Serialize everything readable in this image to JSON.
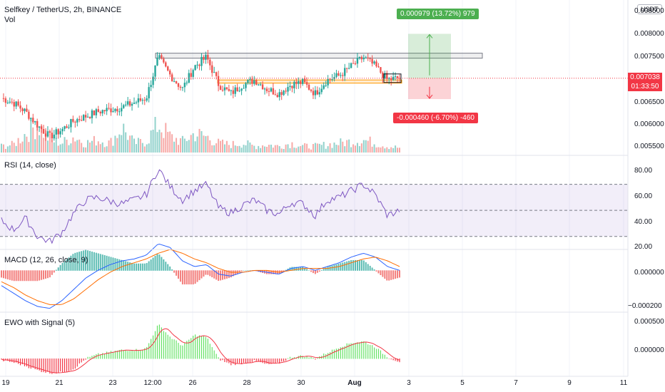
{
  "header": {
    "symbol": "Selfkey / TetherUS, 2h, BINANCE",
    "vol_label": "Vol"
  },
  "currency_button": "USDT",
  "price_axis": [
    "0.008500",
    "0.008000",
    "0.007500",
    "0.006500",
    "0.006000",
    "0.005500"
  ],
  "current_price": {
    "value": "0.007038",
    "countdown": "01:33:50"
  },
  "position": {
    "target_label": "0.000979 (13.72%) 979",
    "stop_label": "-0.000460 (-6.70%) -460"
  },
  "rsi": {
    "label": "RSI (14, close)",
    "axis": [
      "80.00",
      "60.00",
      "40.00",
      "20.00"
    ]
  },
  "macd": {
    "label": "MACD (12, 26, close, 9)",
    "axis": [
      "0.000000",
      "−0.000200"
    ]
  },
  "ewo": {
    "label": "EWO with Signal (5)",
    "axis": [
      "0.000500",
      "0.000000"
    ]
  },
  "time_axis": [
    "19",
    "21",
    "23",
    "12:00",
    "26",
    "28",
    "30",
    "Aug",
    "3",
    "5",
    "7",
    "9",
    "11"
  ],
  "colors": {
    "up": "#26a69a",
    "down": "#ef5350",
    "rsi_line": "#7e57c2",
    "macd_line": "#2962ff",
    "signal_line": "#ff6d00",
    "ewo_up": "#66e266",
    "ewo_down": "#f23645",
    "ewo_signal": "#f23645",
    "target_fill": "#4caf50",
    "stop_fill": "#f23645"
  },
  "chart_data": [
    {
      "type": "candlestick",
      "title": "Selfkey / TetherUS, 2h, BINANCE",
      "ylim": [
        0.0054,
        0.0087
      ],
      "x": [
        "19",
        "21",
        "23",
        "12:00",
        "26",
        "28",
        "30",
        "Aug"
      ],
      "close_path": [
        0.0066,
        0.0065,
        0.0063,
        0.006,
        0.00575,
        0.0059,
        0.0061,
        0.0062,
        0.0063,
        0.00635,
        0.0064,
        0.0065,
        0.0066,
        0.0075,
        0.0071,
        0.0068,
        0.0073,
        0.0075,
        0.0069,
        0.0067,
        0.0069,
        0.007,
        0.0068,
        0.0067,
        0.0069,
        0.00695,
        0.0067,
        0.007,
        0.0071,
        0.0073,
        0.0075,
        0.0073,
        0.007,
        0.00705
      ],
      "volume_path": [
        0.2,
        0.25,
        0.6,
        0.9,
        0.4,
        0.3,
        0.5,
        0.3,
        0.4,
        0.3,
        0.8,
        0.3,
        0.35,
        0.9,
        0.5,
        0.35,
        0.6,
        0.5,
        0.3,
        0.25,
        0.3,
        0.2,
        0.25,
        0.2,
        0.3,
        0.2,
        0.2,
        0.25,
        0.3,
        0.35,
        0.4,
        0.3,
        0.2,
        0.15
      ],
      "resistance_zone": [
        0.00748,
        0.00759
      ],
      "support_zone": [
        0.00693,
        0.007
      ],
      "current_price": 0.007038,
      "target_price": 0.008017,
      "stop_price": 0.006578
    },
    {
      "type": "line",
      "title": "RSI (14, close)",
      "ylim": [
        20,
        90
      ],
      "bands": [
        30,
        50,
        70
      ],
      "values": [
        42,
        35,
        44,
        30,
        26,
        33,
        48,
        58,
        60,
        57,
        55,
        58,
        62,
        82,
        68,
        58,
        65,
        70,
        52,
        48,
        54,
        58,
        50,
        47,
        56,
        55,
        46,
        58,
        60,
        65,
        70,
        62,
        46,
        50
      ]
    },
    {
      "type": "line",
      "title": "MACD (12, 26, close, 9)",
      "ylim": [
        -0.00022,
        0.00011
      ],
      "macd": [
        -8e-05,
        -0.00012,
        -0.00016,
        -0.00019,
        -0.0002,
        -0.00016,
        -0.0001,
        -4e-05,
        0.0,
        3e-05,
        5e-05,
        6e-05,
        8e-05,
        0.00014,
        0.00012,
        5e-05,
        2e-05,
        3e-05,
        -2e-05,
        -3e-05,
        -1e-05,
        0.0,
        -1e-05,
        -2e-05,
        1e-05,
        2e-05,
        0.0,
        2e-05,
        4e-05,
        7e-05,
        9e-05,
        7e-05,
        2e-05,
        0.0
      ],
      "signal": [
        -6e-05,
        -9e-05,
        -0.00013,
        -0.00016,
        -0.00018,
        -0.00018,
        -0.00015,
        -0.0001,
        -5e-05,
        -1e-05,
        2e-05,
        4e-05,
        6e-05,
        9e-05,
        0.00011,
        9e-05,
        6e-05,
        4e-05,
        1e-05,
        -1e-05,
        -1e-05,
        0.0,
        0.0,
        -1e-05,
        0.0,
        1e-05,
        1e-05,
        1e-05,
        2e-05,
        4e-05,
        6e-05,
        7e-05,
        5e-05,
        2e-05
      ]
    },
    {
      "type": "bar",
      "title": "EWO with Signal (5)",
      "ylim": [
        -0.00025,
        0.00065
      ],
      "values": [
        -2e-05,
        -5e-05,
        -0.0001,
        -0.00016,
        -0.0002,
        -0.00019,
        -0.00014,
        0.0,
        6e-05,
        9e-05,
        0.00012,
        0.00012,
        0.00014,
        0.00048,
        0.0003,
        0.00018,
        0.00033,
        0.0003,
        0.0,
        -8e-05,
        -6e-05,
        -3e-05,
        -8e-05,
        -6e-05,
        2e-05,
        4e-05,
        0.0,
        8e-05,
        0.00016,
        0.00022,
        0.00024,
        0.00016,
        2e-05,
        -4e-05
      ]
    }
  ]
}
